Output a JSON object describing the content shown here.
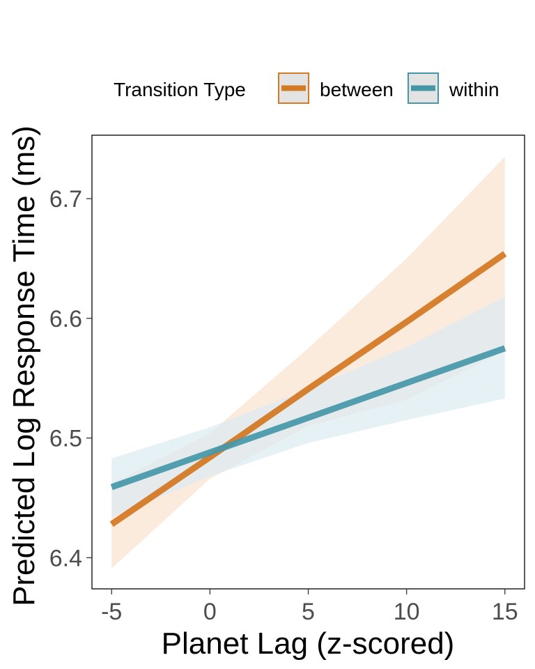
{
  "chart_data": {
    "type": "line",
    "xlabel": "Planet Lag (z-scored)",
    "ylabel": "Predicted Log Response Time (ms)",
    "xlim": [
      -6.0,
      16.0
    ],
    "ylim": [
      6.374,
      6.753
    ],
    "x_ticks": [
      -5,
      0,
      5,
      10,
      15
    ],
    "y_ticks": [
      6.4,
      6.5,
      6.6,
      6.7
    ],
    "x_tick_labels": [
      "-5",
      "0",
      "5",
      "10",
      "15"
    ],
    "y_tick_labels": [
      "6.4",
      "6.5",
      "6.6",
      "6.7"
    ],
    "grid": false,
    "legend": {
      "placement": "top",
      "title": "Transition Type"
    },
    "series": [
      {
        "name": "between",
        "color": "#D47A26",
        "band_color": "#F9E7D7",
        "x": [
          -5,
          0,
          5,
          10,
          15
        ],
        "y": [
          6.428,
          6.484,
          6.541,
          6.597,
          6.654
        ],
        "lower": [
          6.391,
          6.466,
          6.51,
          6.532,
          6.573
        ],
        "upper": [
          6.462,
          6.504,
          6.575,
          6.65,
          6.735
        ]
      },
      {
        "name": "within",
        "color": "#4597A8",
        "band_color": "#DCEBF2",
        "x": [
          -5,
          0,
          5,
          10,
          15
        ],
        "y": [
          6.459,
          6.488,
          6.517,
          6.546,
          6.575
        ],
        "lower": [
          6.434,
          6.468,
          6.496,
          6.515,
          6.533
        ],
        "upper": [
          6.483,
          6.509,
          6.541,
          6.576,
          6.618
        ]
      }
    ]
  }
}
